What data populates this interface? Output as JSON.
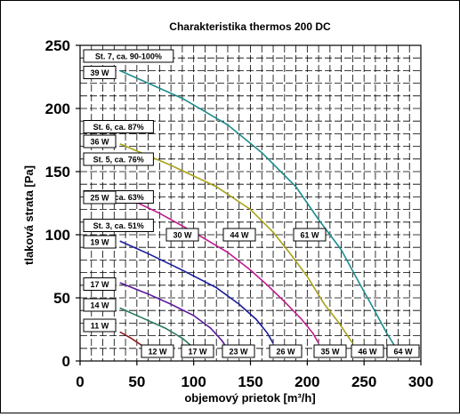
{
  "chart_data": {
    "type": "line",
    "title": "Charakteristika thermos 200 DC",
    "xlabel": "objemový prietok [m³/h]",
    "ylabel": "tlaková strata [Pa]",
    "xlim": [
      0,
      300
    ],
    "ylim": [
      0,
      250
    ],
    "xticks": [
      0,
      50,
      100,
      150,
      200,
      250,
      300
    ],
    "yticks": [
      0,
      50,
      100,
      150,
      200,
      250
    ],
    "grid": true,
    "series": [
      {
        "name": "St. 7, ca. 90-100%",
        "start_power": "39 W",
        "color": "#1f8c8c",
        "points": [
          [
            35,
            230
          ],
          [
            90,
            208
          ],
          [
            130,
            187
          ],
          [
            160,
            165
          ],
          [
            190,
            138
          ],
          [
            210,
            112
          ],
          [
            230,
            88
          ],
          [
            245,
            63
          ],
          [
            258,
            42
          ],
          [
            270,
            22
          ],
          [
            277,
            12
          ]
        ]
      },
      {
        "name": "St. 6, ca. 87%",
        "start_power": "36 W",
        "color": "#a8a21a",
        "points": [
          [
            35,
            172
          ],
          [
            80,
            155
          ],
          [
            120,
            138
          ],
          [
            150,
            120
          ],
          [
            170,
            102
          ],
          [
            185,
            85
          ],
          [
            200,
            67
          ],
          [
            215,
            45
          ],
          [
            228,
            30
          ],
          [
            240,
            14
          ]
        ]
      },
      {
        "name": "St. 5, ca. 76%",
        "start_power": "25 W",
        "color": "#c0198c",
        "points": [
          [
            35,
            132
          ],
          [
            70,
            117
          ],
          [
            100,
            102
          ],
          [
            130,
            86
          ],
          [
            150,
            72
          ],
          [
            165,
            60
          ],
          [
            180,
            47
          ],
          [
            195,
            33
          ],
          [
            205,
            22
          ],
          [
            210,
            14
          ]
        ]
      },
      {
        "name": "St. 4, ca. 63%",
        "start_power": "19 W",
        "color": "#1a1a9c",
        "points": [
          [
            35,
            95
          ],
          [
            60,
            85
          ],
          [
            90,
            72
          ],
          [
            120,
            58
          ],
          [
            140,
            45
          ],
          [
            155,
            33
          ],
          [
            165,
            22
          ],
          [
            170,
            14
          ]
        ]
      },
      {
        "name": "St. 3, ca. 51%",
        "start_power": "17 W",
        "color": "#5a1a9c",
        "points": [
          [
            35,
            62
          ],
          [
            60,
            53
          ],
          [
            80,
            45
          ],
          [
            100,
            36
          ],
          [
            115,
            26
          ],
          [
            125,
            16
          ],
          [
            128,
            12
          ]
        ]
      },
      {
        "name": "",
        "start_power": "14 W",
        "color": "#2a7a5a",
        "points": [
          [
            35,
            42
          ],
          [
            55,
            34
          ],
          [
            75,
            26
          ],
          [
            90,
            18
          ],
          [
            98,
            12
          ]
        ]
      },
      {
        "name": "",
        "start_power": "11 W",
        "color": "#8c1a1a",
        "points": [
          [
            35,
            23
          ],
          [
            45,
            18
          ],
          [
            55,
            12
          ]
        ]
      }
    ],
    "end_power_labels": [
      "12 W",
      "17 W",
      "23 W",
      "26 W",
      "35 W",
      "46 W",
      "64 W"
    ],
    "mid_power_labels": [
      "30 W",
      "44 W",
      "61 W"
    ]
  }
}
